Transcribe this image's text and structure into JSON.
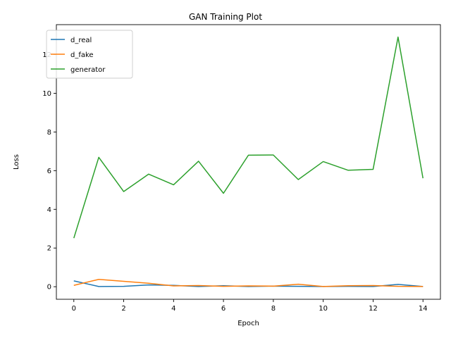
{
  "chart_data": {
    "type": "line",
    "title": "GAN Training Plot",
    "xlabel": "Epoch",
    "ylabel": "Loss",
    "x": [
      0,
      1,
      2,
      3,
      4,
      5,
      6,
      7,
      8,
      9,
      10,
      11,
      12,
      13,
      14
    ],
    "xlim": [
      -0.7,
      14.7
    ],
    "ylim": [
      -0.65,
      13.55
    ],
    "xticks": [
      0,
      2,
      4,
      6,
      8,
      10,
      12,
      14
    ],
    "yticks": [
      0,
      2,
      4,
      6,
      8,
      10,
      12
    ],
    "grid": false,
    "legend_position": "top-left",
    "series": [
      {
        "name": "d_real",
        "color": "#1f77b4",
        "values": [
          0.3,
          0.01,
          0.02,
          0.09,
          0.07,
          0.01,
          0.05,
          0.01,
          0.03,
          0.02,
          0.01,
          0.02,
          0.01,
          0.12,
          0.01
        ]
      },
      {
        "name": "d_fake",
        "color": "#ff7f0e",
        "values": [
          0.07,
          0.38,
          0.28,
          0.18,
          0.04,
          0.06,
          0.02,
          0.04,
          0.03,
          0.13,
          0.01,
          0.05,
          0.06,
          0.02,
          0.01
        ]
      },
      {
        "name": "generator",
        "color": "#2ca02c",
        "values": [
          2.51,
          6.69,
          4.92,
          5.82,
          5.27,
          6.49,
          4.83,
          6.8,
          6.81,
          5.54,
          6.47,
          6.02,
          6.07,
          12.91,
          5.61
        ]
      }
    ]
  }
}
